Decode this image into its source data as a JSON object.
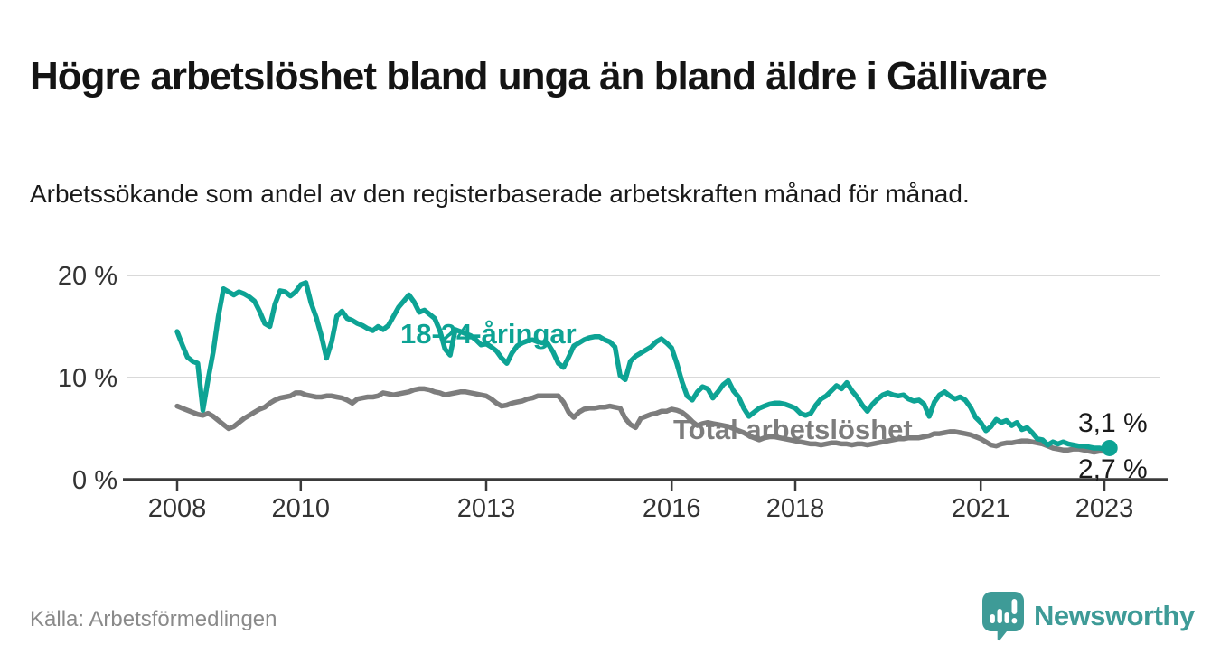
{
  "header": {
    "title": "Högre arbetslöshet bland unga än bland äldre i Gällivare",
    "subtitle": "Arbetssökande som andel av den registerbaserade arbetskraften månad för månad."
  },
  "colors": {
    "accent_teal": "#0DA394",
    "line_gray": "#7D7D7D",
    "grid": "#D9D9D9",
    "axis": "#3A3A3A",
    "text_dark": "#1A1A1A",
    "axis_text": "#333333",
    "source_gray": "#8A8A8A",
    "brand_teal": "#3E9B97"
  },
  "chart_data": {
    "type": "line",
    "title": "Högre arbetslöshet bland unga än bland äldre i Gällivare",
    "xlabel": "",
    "ylabel": "",
    "unit": "%",
    "frequency": "monthly",
    "start": "2008-01",
    "end": "2023-02",
    "ylim": [
      0,
      21
    ],
    "grid": "horizontal",
    "y_ticks": [
      {
        "value": 0,
        "label": "0 %"
      },
      {
        "value": 10,
        "label": "10 %"
      },
      {
        "value": 20,
        "label": "20 %"
      }
    ],
    "x_ticks": [
      {
        "year": 2008,
        "label": "2008"
      },
      {
        "year": 2010,
        "label": "2010"
      },
      {
        "year": 2013,
        "label": "2013"
      },
      {
        "year": 2016,
        "label": "2016"
      },
      {
        "year": 2018,
        "label": "2018"
      },
      {
        "year": 2021,
        "label": "2021"
      },
      {
        "year": 2023,
        "label": "2023"
      }
    ],
    "series": [
      {
        "name": "Total arbetslöshet",
        "color": "#7D7D7D",
        "end_label": "2,7 %",
        "end_value": 2.7,
        "end_dot": false,
        "values": [
          7.2,
          7.0,
          6.8,
          6.6,
          6.4,
          6.3,
          6.5,
          6.2,
          5.8,
          5.4,
          5.0,
          5.2,
          5.6,
          6.0,
          6.3,
          6.6,
          6.9,
          7.1,
          7.5,
          7.8,
          8.0,
          8.1,
          8.2,
          8.5,
          8.5,
          8.3,
          8.2,
          8.1,
          8.1,
          8.2,
          8.2,
          8.1,
          8.0,
          7.8,
          7.5,
          7.9,
          8.0,
          8.1,
          8.1,
          8.2,
          8.5,
          8.4,
          8.3,
          8.4,
          8.5,
          8.6,
          8.8,
          8.9,
          8.9,
          8.8,
          8.6,
          8.5,
          8.3,
          8.4,
          8.5,
          8.6,
          8.6,
          8.5,
          8.4,
          8.3,
          8.2,
          7.9,
          7.5,
          7.2,
          7.3,
          7.5,
          7.6,
          7.7,
          7.9,
          8.0,
          8.2,
          8.2,
          8.2,
          8.2,
          8.2,
          7.6,
          6.6,
          6.1,
          6.6,
          6.9,
          7.0,
          7.0,
          7.1,
          7.1,
          7.2,
          7.1,
          7.0,
          6.0,
          5.4,
          5.1,
          6.0,
          6.2,
          6.4,
          6.5,
          6.7,
          6.7,
          6.9,
          6.8,
          6.6,
          6.2,
          5.7,
          5.3,
          5.5,
          5.6,
          5.5,
          5.4,
          5.3,
          5.2,
          5.0,
          4.8,
          4.6,
          4.3,
          4.1,
          3.9,
          4.1,
          4.2,
          4.2,
          4.1,
          4.0,
          3.9,
          3.8,
          3.7,
          3.6,
          3.5,
          3.5,
          3.4,
          3.5,
          3.6,
          3.6,
          3.5,
          3.5,
          3.4,
          3.5,
          3.5,
          3.4,
          3.5,
          3.6,
          3.7,
          3.8,
          3.9,
          4.0,
          4.0,
          4.1,
          4.1,
          4.1,
          4.2,
          4.3,
          4.5,
          4.5,
          4.6,
          4.7,
          4.7,
          4.6,
          4.5,
          4.4,
          4.2,
          4.0,
          3.7,
          3.4,
          3.3,
          3.5,
          3.6,
          3.6,
          3.7,
          3.8,
          3.8,
          3.7,
          3.6,
          3.5,
          3.3,
          3.1,
          3.0,
          2.9,
          2.9,
          3.0,
          3.0,
          2.9,
          2.8,
          2.7,
          2.8,
          2.8,
          2.7
        ]
      },
      {
        "name": "18-24-åringar",
        "color": "#0DA394",
        "end_label": "3,1 %",
        "end_value": 3.1,
        "end_dot": true,
        "values": [
          14.5,
          13.2,
          12.0,
          11.6,
          11.4,
          6.8,
          9.8,
          12.5,
          16.0,
          18.7,
          18.4,
          18.1,
          18.4,
          18.2,
          17.9,
          17.5,
          16.5,
          15.3,
          15.0,
          17.2,
          18.5,
          18.4,
          18.0,
          18.4,
          19.1,
          19.3,
          17.3,
          15.9,
          14.1,
          11.9,
          13.5,
          16.0,
          16.5,
          15.8,
          15.6,
          15.3,
          15.1,
          14.8,
          14.6,
          15.0,
          14.7,
          15.1,
          16.0,
          16.9,
          17.5,
          18.1,
          17.4,
          16.4,
          16.6,
          16.2,
          15.8,
          14.6,
          12.8,
          12.2,
          14.7,
          14.5,
          14.3,
          14.1,
          13.7,
          13.2,
          13.3,
          13.0,
          12.6,
          11.9,
          11.4,
          12.4,
          13.1,
          13.4,
          13.6,
          13.7,
          13.5,
          13.4,
          13.3,
          12.5,
          11.4,
          11.0,
          12.0,
          13.1,
          13.4,
          13.7,
          13.9,
          14.0,
          14.0,
          13.7,
          13.5,
          13.0,
          10.2,
          9.8,
          11.6,
          12.1,
          12.4,
          12.7,
          13.0,
          13.5,
          13.8,
          13.4,
          12.9,
          11.4,
          9.6,
          8.2,
          7.8,
          8.6,
          9.1,
          8.9,
          8.0,
          8.6,
          9.3,
          9.7,
          8.7,
          8.1,
          7.0,
          6.2,
          6.6,
          7.0,
          7.2,
          7.4,
          7.5,
          7.5,
          7.4,
          7.2,
          7.0,
          6.5,
          6.3,
          6.5,
          7.3,
          7.9,
          8.2,
          8.7,
          9.2,
          8.9,
          9.5,
          8.7,
          8.1,
          7.3,
          6.7,
          7.4,
          7.9,
          8.3,
          8.5,
          8.3,
          8.2,
          8.3,
          7.9,
          7.7,
          7.8,
          7.4,
          6.2,
          7.6,
          8.3,
          8.6,
          8.2,
          7.9,
          8.1,
          7.8,
          7.1,
          6.1,
          5.6,
          4.8,
          5.2,
          5.9,
          5.6,
          5.8,
          5.3,
          5.6,
          4.9,
          5.1,
          4.6,
          4.0,
          3.9,
          3.4,
          3.7,
          3.5,
          3.7,
          3.5,
          3.4,
          3.3,
          3.3,
          3.2,
          3.1,
          3.1,
          3.0,
          3.1
        ]
      }
    ],
    "annotations": [
      {
        "text": "18-24-åringar",
        "color": "#0DA394"
      },
      {
        "text": "Total arbetslöshet",
        "color": "#7D7D7D"
      }
    ]
  },
  "footer": {
    "source": "Källa: Arbetsförmedlingen",
    "brand": "Newsworthy"
  }
}
